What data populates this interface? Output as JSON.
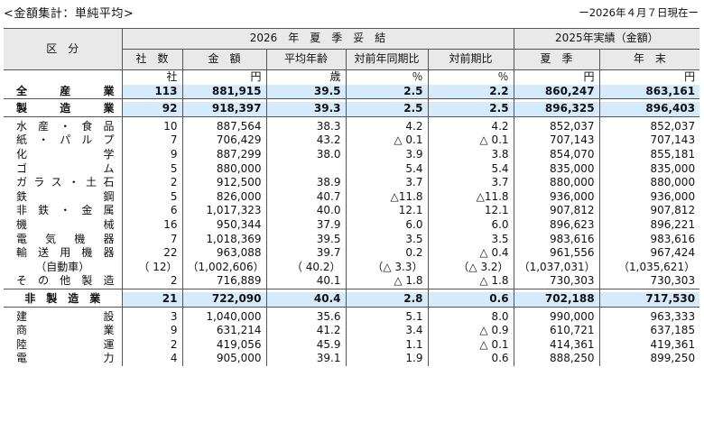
{
  "header": {
    "title": "<金額集計：単純平均>",
    "date": "ー2026年４月７日現在ー"
  },
  "columns": {
    "category": "区　分",
    "group_2026": "2026　年　夏　季　妥　結",
    "group_2025": "2025年実績（金額）",
    "sub": [
      "社　数",
      "金　額",
      "平均年齢",
      "対前年同期比",
      "対前期比",
      "夏　季",
      "年　末"
    ]
  },
  "units": [
    "社",
    "円",
    "歳",
    "％",
    "％",
    "円",
    "円"
  ],
  "rows": {
    "all": [
      "全　産　業",
      "113",
      "881,915",
      "39.5",
      "2.5",
      "2.2",
      "860,247",
      "863,161"
    ],
    "mfg": [
      "製　造　業",
      "92",
      "918,397",
      "39.3",
      "2.5",
      "2.5",
      "896,325",
      "896,403"
    ],
    "mfg_detail": [
      [
        "水産・食品",
        "10",
        "887,564",
        "38.3",
        "4.2",
        "4.2",
        "852,037",
        "852,037"
      ],
      [
        "紙・パルプ",
        "7",
        "706,429",
        "43.2",
        "△ 0.1",
        "△ 0.1",
        "707,143",
        "707,143"
      ],
      [
        "化学",
        "9",
        "887,299",
        "38.0",
        "3.9",
        "3.8",
        "854,070",
        "855,181"
      ],
      [
        "ゴム",
        "5",
        "880,000",
        "",
        "5.4",
        "5.4",
        "835,000",
        "835,000"
      ],
      [
        "ガラス・土石",
        "2",
        "912,500",
        "38.9",
        "3.7",
        "3.7",
        "880,000",
        "880,000"
      ],
      [
        "鉄鋼",
        "5",
        "826,000",
        "40.7",
        "△11.8",
        "△11.8",
        "936,000",
        "936,000"
      ],
      [
        "非鉄・金属",
        "6",
        "1,017,323",
        "40.0",
        "12.1",
        "12.1",
        "907,812",
        "907,812"
      ],
      [
        "機械",
        "16",
        "950,344",
        "37.9",
        "6.0",
        "6.0",
        "896,623",
        "896,221"
      ],
      [
        "電気機器",
        "7",
        "1,018,369",
        "39.5",
        "3.5",
        "3.5",
        "983,616",
        "983,616"
      ],
      [
        "輸送用機器",
        "22",
        "963,088",
        "39.7",
        "0.2",
        "△ 0.4",
        "961,556",
        "967,424"
      ]
    ],
    "auto": [
      "（自動車）",
      "（ 12）",
      "（1,002,606）",
      "（ 40.2）",
      "（△ 3.3）",
      "（△ 3.2）",
      "（1,037,031）",
      "（1,035,621）"
    ],
    "other_mfg": [
      "その他製造",
      "2",
      "716,889",
      "40.1",
      "△ 1.8",
      "△ 1.8",
      "730,303",
      "730,303"
    ],
    "nonmfg": [
      "非　製　造　業",
      "21",
      "722,090",
      "40.4",
      "2.8",
      "0.6",
      "702,188",
      "717,530"
    ],
    "nonmfg_detail": [
      [
        "建設",
        "3",
        "1,040,000",
        "35.6",
        "5.1",
        "8.0",
        "990,000",
        "963,333"
      ],
      [
        "商業",
        "9",
        "631,214",
        "41.2",
        "3.4",
        "△ 0.9",
        "610,721",
        "637,185"
      ],
      [
        "陸運",
        "2",
        "419,056",
        "45.9",
        "1.1",
        "△ 0.1",
        "414,361",
        "419,361"
      ],
      [
        "電力",
        "4",
        "905,000",
        "39.1",
        "1.9",
        "0.6",
        "888,250",
        "899,250"
      ]
    ]
  }
}
